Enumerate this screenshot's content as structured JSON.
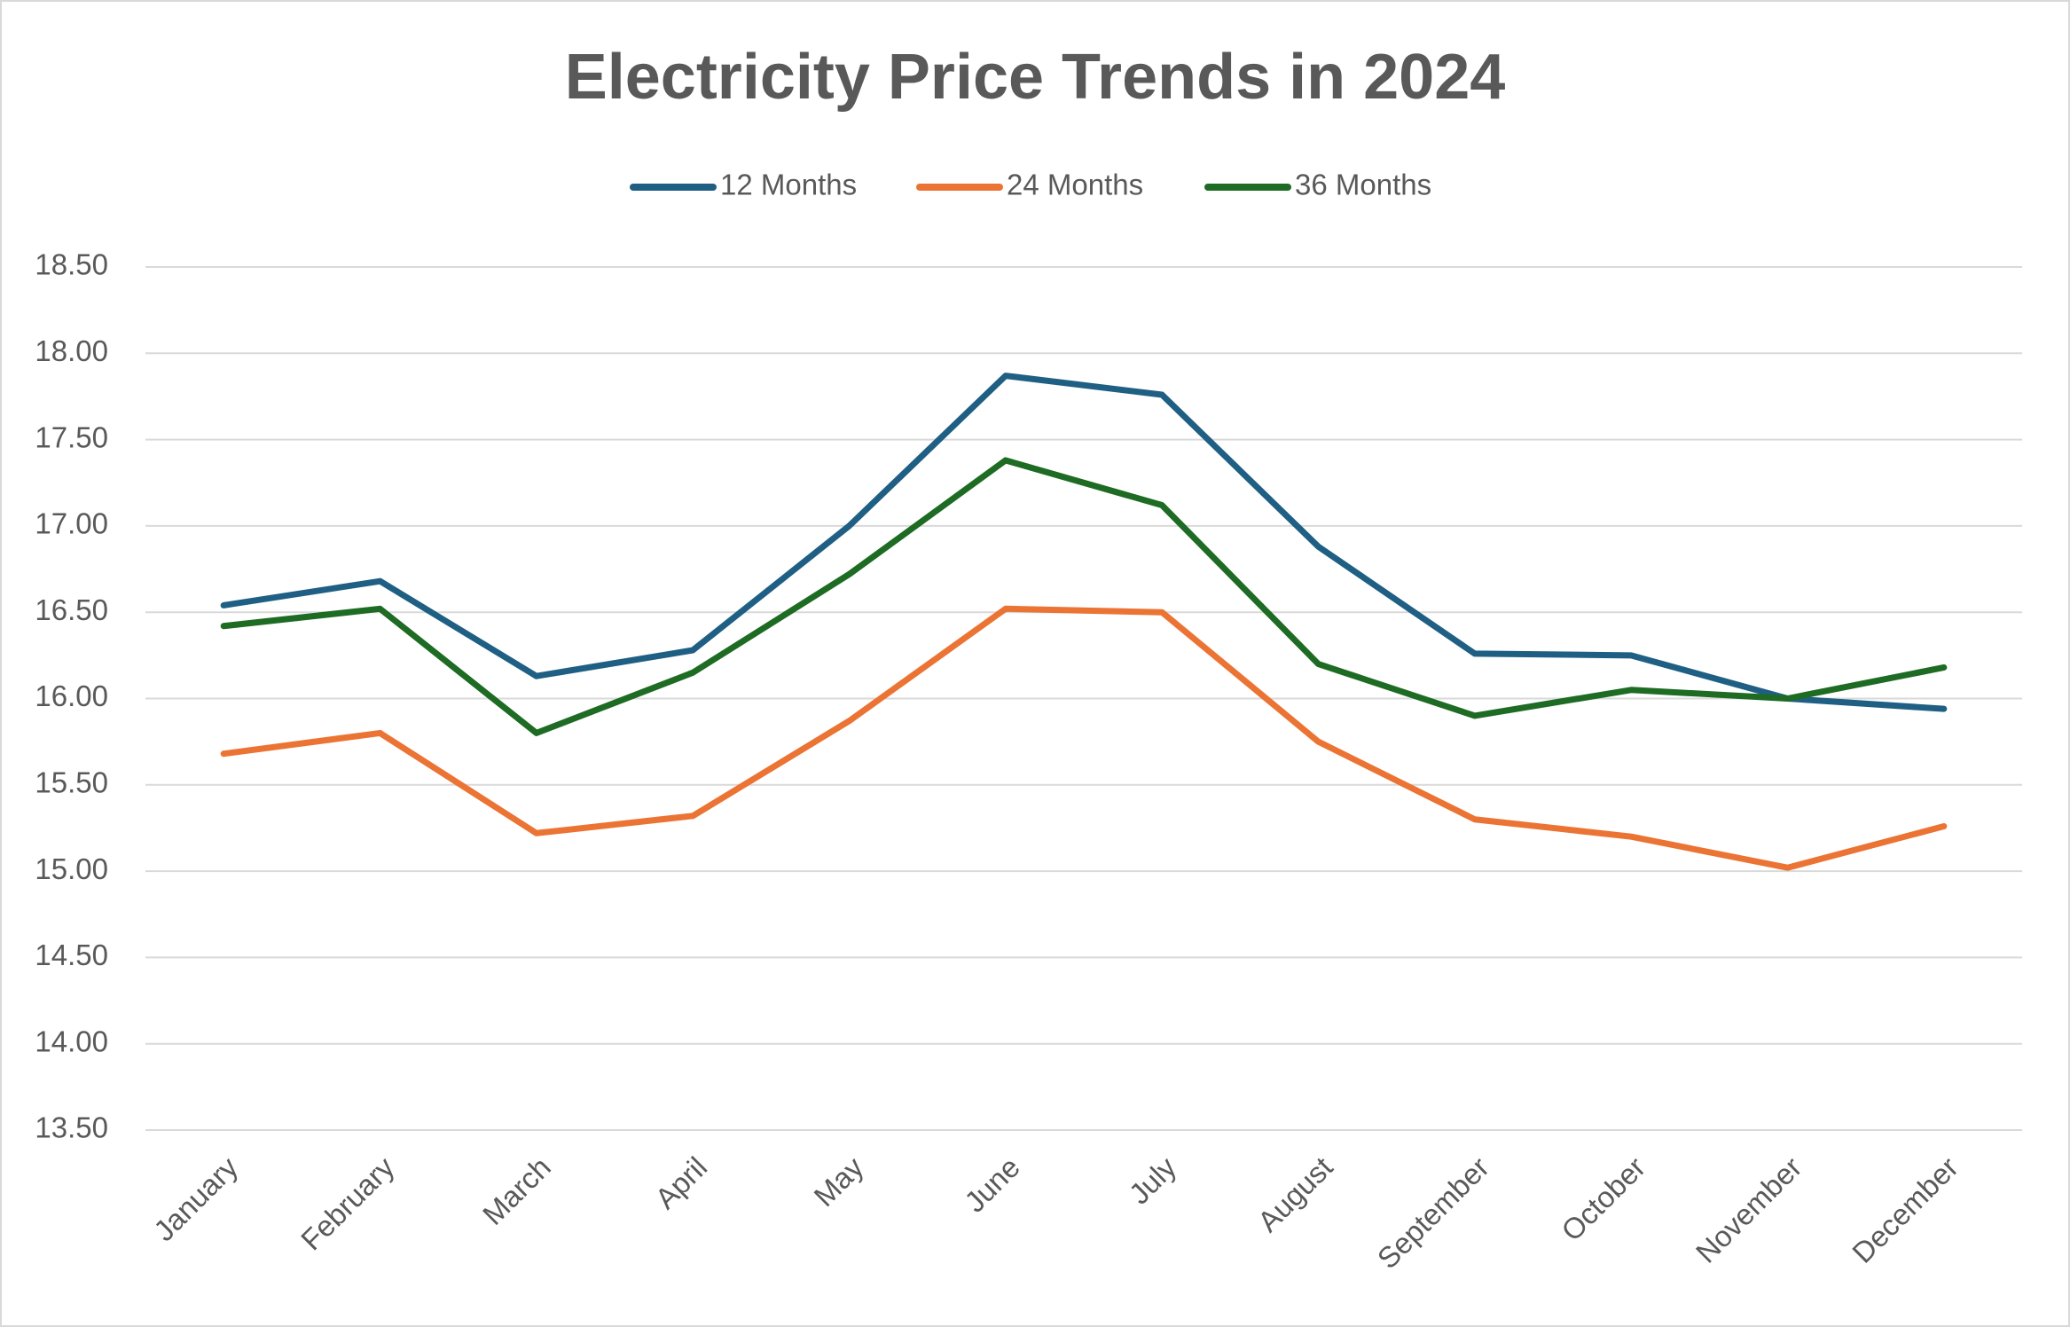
{
  "chart_data": {
    "type": "line",
    "title": "Electricity Price Trends in 2024",
    "categories": [
      "January",
      "February",
      "March",
      "April",
      "May",
      "June",
      "July",
      "August",
      "September",
      "October",
      "November",
      "December"
    ],
    "series": [
      {
        "name": "12 Months",
        "color": "#1f5f84",
        "values": [
          16.54,
          16.68,
          16.13,
          16.28,
          17.0,
          17.87,
          17.76,
          16.88,
          16.26,
          16.25,
          16.0,
          15.94
        ]
      },
      {
        "name": "24 Months",
        "color": "#eb7434",
        "values": [
          15.68,
          15.8,
          15.22,
          15.32,
          15.87,
          16.52,
          16.5,
          15.75,
          15.3,
          15.2,
          15.02,
          15.26
        ]
      },
      {
        "name": "36 Months",
        "color": "#1e6b24",
        "values": [
          16.42,
          16.52,
          15.8,
          16.15,
          16.72,
          17.38,
          17.12,
          16.2,
          15.9,
          16.05,
          16.0,
          16.18
        ]
      }
    ],
    "ylim": [
      13.5,
      18.5
    ],
    "yticks": [
      {
        "value": 13.5,
        "label": "13.50"
      },
      {
        "value": 14,
        "label": "14.00"
      },
      {
        "value": 14.5,
        "label": "14.50"
      },
      {
        "value": 15,
        "label": "15.00"
      },
      {
        "value": 15.5,
        "label": "15.50"
      },
      {
        "value": 16,
        "label": "16.00"
      },
      {
        "value": 16.5,
        "label": "16.50"
      },
      {
        "value": 17,
        "label": "17.00"
      },
      {
        "value": 17.5,
        "label": "17.50"
      },
      {
        "value": 18,
        "label": "18.00"
      },
      {
        "value": 18.5,
        "label": "18.50"
      }
    ],
    "grid": true,
    "legend": "top"
  }
}
